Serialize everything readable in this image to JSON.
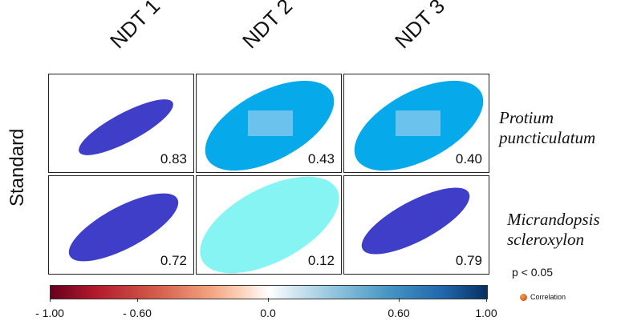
{
  "columns": [
    "NDT 1",
    "NDT 2",
    "NDT 3"
  ],
  "row_axis_label": "Standard",
  "rows": [
    "Protium puncticulatum",
    "Micrandopsis scleroxylon"
  ],
  "p_note": "p < 0.05",
  "legend_key": "Correlation",
  "colorbar_ticks": [
    "- 1.00",
    "- 0.60",
    "0.0",
    "0.60",
    "1.00"
  ],
  "chart_data": {
    "type": "heatmap",
    "x_categories": [
      "NDT 1",
      "NDT 2",
      "NDT 3"
    ],
    "y_categories": [
      "Protium puncticulatum",
      "Micrandopsis scleroxylon"
    ],
    "values": [
      [
        0.83,
        0.43,
        0.4
      ],
      [
        0.72,
        0.12,
        0.79
      ]
    ],
    "highlighted": [
      [
        false,
        true,
        true
      ],
      [
        false,
        false,
        false
      ]
    ],
    "scale": {
      "min": -1.0,
      "max": 1.0,
      "ticks": [
        -1.0,
        -0.6,
        0.0,
        0.6,
        1.0
      ]
    },
    "colors": {
      "strong_positive": "#3e3ec8",
      "moderate_positive": "#06aaeb",
      "weak_positive": "#86f4f3",
      "highlight_box": "#8ec9ee"
    }
  }
}
